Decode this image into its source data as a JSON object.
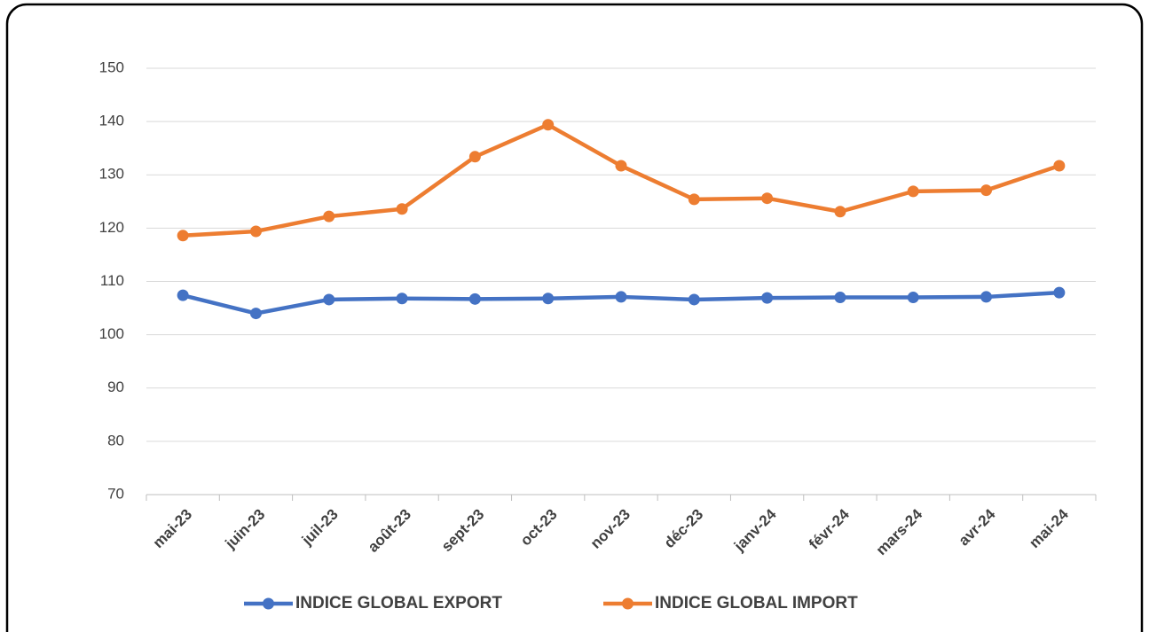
{
  "chart_data": {
    "type": "line",
    "categories": [
      "mai-23",
      "juin-23",
      "juil-23",
      "août-23",
      "sept-23",
      "oct-23",
      "nov-23",
      "déc-23",
      "janv-24",
      "févr-24",
      "mars-24",
      "avr-24",
      "mai-24"
    ],
    "series": [
      {
        "name": "INDICE GLOBAL EXPORT",
        "color": "#4472c4",
        "values": [
          107.4,
          104.0,
          106.6,
          106.8,
          106.7,
          106.8,
          107.1,
          106.6,
          106.9,
          107.0,
          107.0,
          107.1,
          107.9
        ]
      },
      {
        "name": "INDICE GLOBAL IMPORT",
        "color": "#ed7d31",
        "values": [
          118.6,
          119.4,
          122.2,
          123.6,
          133.4,
          139.4,
          131.7,
          125.4,
          125.6,
          123.1,
          126.9,
          127.1,
          131.7
        ]
      }
    ],
    "ylim": [
      70,
      150
    ],
    "yticks": [
      70,
      80,
      90,
      100,
      110,
      120,
      130,
      140,
      150
    ],
    "grid": true,
    "legend": "bottom"
  }
}
